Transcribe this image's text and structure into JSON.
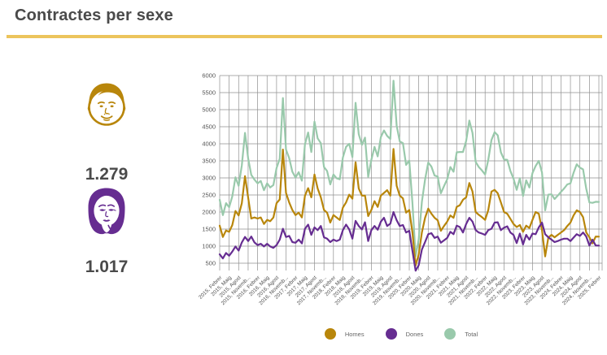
{
  "page": {
    "title": "Contractes per sexe"
  },
  "summary": {
    "homes": {
      "value": "1.279",
      "icon": "man-face-icon",
      "color": "#B8860B"
    },
    "dones": {
      "value": "1.017",
      "icon": "woman-face-icon",
      "color": "#662D91"
    }
  },
  "chart_data": {
    "type": "line",
    "title": "Contractes per sexe",
    "interval": "monthly",
    "start_month": "2015-02",
    "end_month": "2025-02",
    "ylim": [
      500,
      6000
    ],
    "y_ticks": [
      500,
      1000,
      1500,
      2000,
      2500,
      3000,
      3500,
      4000,
      4500,
      5000,
      5500,
      6000
    ],
    "grid": true,
    "legend_position": "bottom",
    "x_tick_labels": [
      "2015, Febrer",
      "2015, Maig",
      "2015, Agost",
      "2015, Novemb...",
      "2016, Febrer",
      "2016, Maig",
      "2016, Agost",
      "2016, Novemb...",
      "2017, Febrer",
      "2017, Maig",
      "2017, Agost",
      "2017, Novemb...",
      "2018, Febrer",
      "2018, Maig",
      "2018, Agost",
      "2018, Novemb...",
      "2019, Febrer",
      "2019, Maig",
      "2019, Agost",
      "2019, Novemb...",
      "2020, Febrer",
      "2020, Maig",
      "2020, Agost",
      "2020, Novemb...",
      "2021, Febrer",
      "2021, Maig",
      "2021, Agost",
      "2021, Novemb...",
      "2022, Febrer",
      "2022, Maig",
      "2022, Agost",
      "2022, Novemb...",
      "2023, Febrer",
      "2023, Maig",
      "2023, Agost",
      "2023, Novemb...",
      "2024, Febrer",
      "2024, Maig",
      "2024, Agost",
      "2024, Novemb...",
      "2025, Febrer"
    ],
    "series": [
      {
        "name": "Homes",
        "color": "#B8860B",
        "values": [
          1600,
          1270,
          1460,
          1420,
          1620,
          2030,
          1900,
          2260,
          3050,
          2420,
          1810,
          1840,
          1810,
          1840,
          1650,
          1770,
          1730,
          1840,
          2260,
          2370,
          3830,
          2560,
          2280,
          2060,
          1910,
          1980,
          1840,
          2480,
          2700,
          2430,
          3100,
          2690,
          2430,
          2060,
          1980,
          1690,
          1910,
          1840,
          1770,
          2130,
          2280,
          2510,
          2390,
          3460,
          2690,
          2480,
          2480,
          1880,
          2060,
          2320,
          2150,
          2480,
          2560,
          2640,
          2480,
          3850,
          2770,
          2480,
          2400,
          1980,
          2060,
          1400,
          430,
          760,
          1400,
          1830,
          2100,
          1950,
          1830,
          1760,
          1450,
          1590,
          1720,
          1900,
          1830,
          2150,
          2200,
          2360,
          2430,
          2850,
          2600,
          2000,
          1920,
          1850,
          1770,
          2060,
          2600,
          2650,
          2550,
          2280,
          2000,
          1950,
          1800,
          1650,
          1560,
          1620,
          1420,
          1600,
          1530,
          1770,
          2000,
          1950,
          1470,
          700,
          1250,
          1330,
          1260,
          1330,
          1400,
          1470,
          1590,
          1690,
          1900,
          2050,
          2000,
          1850,
          1400,
          1260,
          1080,
          1280,
          1279
        ]
      },
      {
        "name": "Dones",
        "color": "#662D91",
        "values": [
          760,
          640,
          800,
          720,
          840,
          990,
          870,
          1110,
          1270,
          1150,
          1280,
          1110,
          1030,
          1070,
          990,
          1070,
          990,
          950,
          1030,
          1190,
          1510,
          1270,
          1300,
          1120,
          1100,
          1190,
          1080,
          1510,
          1630,
          1330,
          1550,
          1470,
          1590,
          1260,
          1220,
          1120,
          1190,
          1150,
          1190,
          1470,
          1630,
          1490,
          1220,
          1740,
          1590,
          1490,
          1700,
          1150,
          1470,
          1590,
          1480,
          1720,
          1830,
          1590,
          1660,
          2000,
          1760,
          1590,
          1620,
          1400,
          1450,
          860,
          280,
          440,
          900,
          1120,
          1350,
          1380,
          1240,
          1280,
          1100,
          1170,
          1240,
          1420,
          1350,
          1600,
          1560,
          1400,
          1650,
          1830,
          1720,
          1470,
          1400,
          1370,
          1330,
          1470,
          1510,
          1690,
          1700,
          1470,
          1540,
          1580,
          1400,
          1330,
          1090,
          1370,
          1050,
          1330,
          1190,
          1370,
          1350,
          1550,
          1690,
          1350,
          1260,
          1190,
          1120,
          1150,
          1190,
          1220,
          1220,
          1150,
          1250,
          1350,
          1300,
          1400,
          1280,
          1020,
          1190,
          1020,
          1017
        ]
      },
      {
        "name": "Total",
        "color": "#99C9AB",
        "values": [
          2360,
          1910,
          2260,
          2140,
          2460,
          3020,
          2770,
          3370,
          4320,
          3570,
          3090,
          2950,
          2840,
          2910,
          2640,
          2840,
          2720,
          2790,
          3290,
          3560,
          5340,
          3830,
          3580,
          3180,
          3010,
          3170,
          2920,
          3990,
          4330,
          3760,
          4650,
          4160,
          4020,
          3320,
          3200,
          2810,
          3100,
          2990,
          2960,
          3600,
          3910,
          4000,
          3610,
          5200,
          4280,
          3970,
          4180,
          3030,
          3530,
          3910,
          3630,
          4200,
          4390,
          4230,
          4140,
          5850,
          4530,
          4070,
          4020,
          3380,
          3510,
          2260,
          710,
          1200,
          2300,
          2950,
          3450,
          3330,
          3070,
          3040,
          2550,
          2760,
          2960,
          3320,
          3180,
          3750,
          3760,
          3760,
          4080,
          4680,
          4320,
          3470,
          3320,
          3220,
          3100,
          3530,
          4110,
          4340,
          4250,
          3750,
          3540,
          3530,
          3200,
          2980,
          2650,
          2990,
          2470,
          2930,
          2720,
          3140,
          3350,
          3500,
          3160,
          2050,
          2510,
          2520,
          2380,
          2480,
          2590,
          2690,
          2810,
          2840,
          3150,
          3400,
          3300,
          3250,
          2680,
          2280,
          2270,
          2300,
          2296
        ]
      }
    ]
  },
  "theme": {
    "rule_color": "#ECC45C",
    "grid_color": "#8F8F8F",
    "axis_label_color": "#555555",
    "title_color": "#4A4A4A"
  }
}
